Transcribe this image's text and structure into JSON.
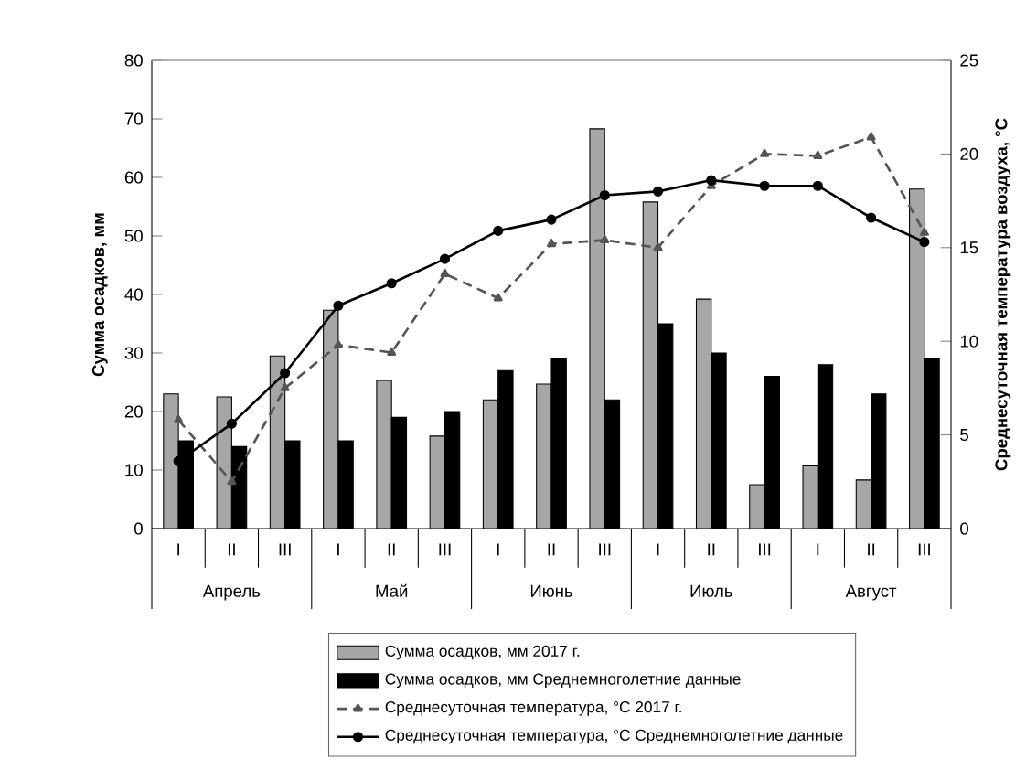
{
  "chart_data": {
    "type": "bar",
    "categories": [
      "I",
      "II",
      "III",
      "I",
      "II",
      "III",
      "I",
      "II",
      "III",
      "I",
      "II",
      "III",
      "I",
      "II",
      "III"
    ],
    "ylabel": "Сумма осадков, мм",
    "y2label": "Среднесуточная температура воздуха, °С",
    "ylim": [
      0,
      80
    ],
    "yticks": [
      0,
      10,
      20,
      30,
      40,
      50,
      60,
      70,
      80
    ],
    "y2lim": [
      0,
      25
    ],
    "y2ticks": [
      0,
      5,
      10,
      15,
      20,
      25
    ],
    "annotations": [
      "Апрель",
      "Май",
      "Июнь",
      "Июль",
      "Август"
    ],
    "legend": "bottom",
    "series": [
      {
        "name": "Сумма осадков, мм 2017 г.",
        "color": "#a6a6a6",
        "values": [
          23,
          22.5,
          29.5,
          37.3,
          25.3,
          15.8,
          22,
          24.7,
          68.3,
          55.8,
          39.2,
          7.5,
          10.7,
          8.3,
          58
        ]
      },
      {
        "name": "Сумма осадков, мм Среднемноголетние данные",
        "color": "#000000",
        "values": [
          15,
          14,
          15,
          15,
          19,
          20,
          27,
          29,
          22,
          35,
          30,
          26,
          28,
          23,
          29
        ]
      },
      {
        "name": "Среднесуточная температура, °С 2017 г.",
        "type": "line",
        "axis": "y2",
        "color": "#555555",
        "marker": "triangle",
        "line_style": "dashed",
        "values": [
          5.8,
          2.5,
          7.5,
          9.8,
          9.4,
          13.6,
          12.3,
          15.2,
          15.4,
          15.0,
          18.3,
          20.0,
          19.9,
          20.9,
          15.8
        ]
      },
      {
        "name": "Среднесуточная температура, °С Среднемноголетние данные",
        "type": "line",
        "axis": "y2",
        "color": "#000000",
        "marker": "circle",
        "line_style": "solid",
        "values": [
          3.6,
          5.6,
          8.3,
          11.9,
          13.1,
          14.4,
          15.9,
          16.5,
          17.8,
          18.0,
          18.6,
          18.3,
          18.3,
          16.6,
          15.3
        ]
      }
    ]
  }
}
